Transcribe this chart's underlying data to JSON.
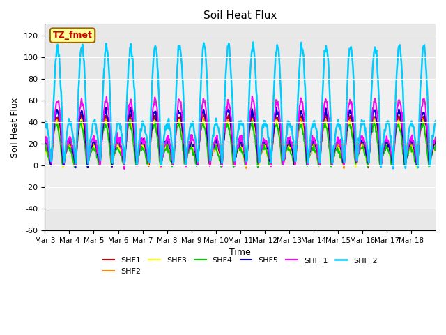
{
  "title": "Soil Heat Flux",
  "ylabel": "Soil Heat Flux",
  "xlabel": "Time",
  "ylim": [
    -60,
    130
  ],
  "annotation_text": "TZ_fmet",
  "annotation_color": "#cc0000",
  "annotation_bg": "#ffff99",
  "annotation_border": "#996600",
  "series": [
    "SHF1",
    "SHF2",
    "SHF3",
    "SHF4",
    "SHF5",
    "SHF_1",
    "SHF_2"
  ],
  "colors": [
    "#cc0000",
    "#ff8800",
    "#ffff00",
    "#00cc00",
    "#0000cc",
    "#ff00ff",
    "#00ccff"
  ],
  "xtick_labels": [
    "Mar 3",
    "Mar 4",
    "Mar 5",
    "Mar 6",
    "Mar 7",
    "Mar 8",
    "Mar 9",
    "Mar 10",
    "Mar 11",
    "Mar 12",
    "Mar 13",
    "Mar 14",
    "Mar 15",
    "Mar 16",
    "Mar 17",
    "Mar 18"
  ],
  "n_days": 16,
  "yticks": [
    -60,
    -40,
    -20,
    0,
    20,
    40,
    60,
    80,
    100,
    120
  ],
  "background_bands": [
    {
      "ymin": 80,
      "ymax": 130,
      "color": "#e8e8e8"
    },
    {
      "ymin": 40,
      "ymax": 80,
      "color": "#f0f0f0"
    },
    {
      "ymin": 0,
      "ymax": 40,
      "color": "#e8e8e8"
    },
    {
      "ymin": -40,
      "ymax": 0,
      "color": "#f0f0f0"
    },
    {
      "ymin": -60,
      "ymax": -40,
      "color": "#e8e8e8"
    }
  ]
}
